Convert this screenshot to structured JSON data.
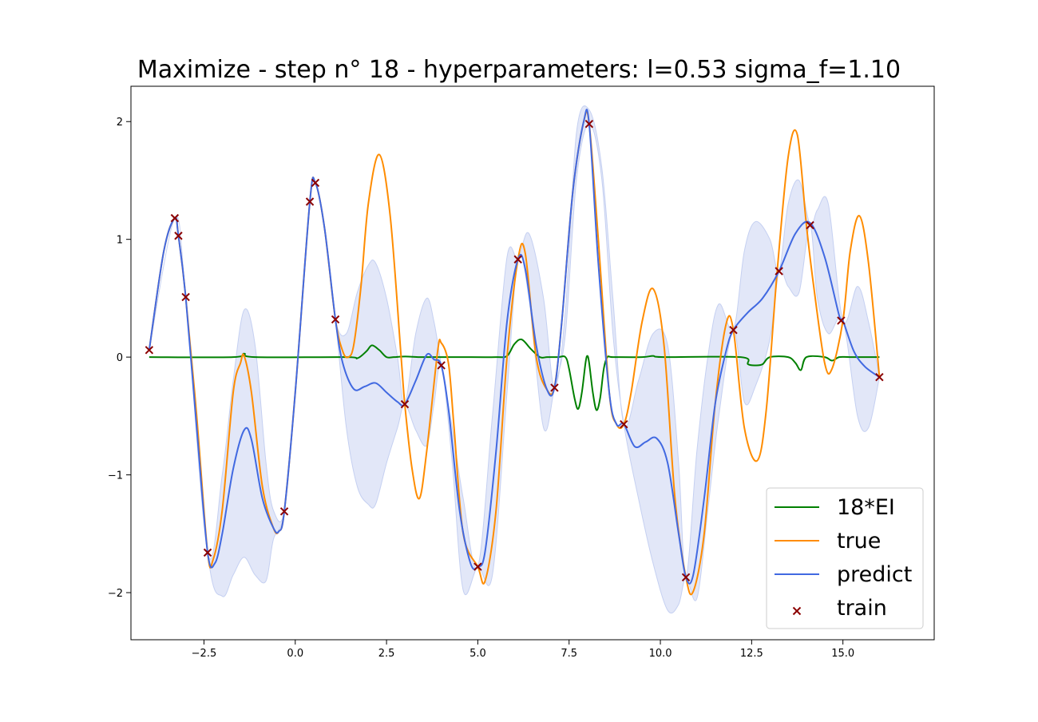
{
  "chart_data": {
    "type": "line",
    "title": "Maximize - step n° 18 - hyperparameters: l=0.53 sigma_f=1.10",
    "xlabel": "",
    "ylabel": "",
    "xlim": [
      -4.5,
      17.5
    ],
    "ylim": [
      -2.4,
      2.3
    ],
    "x_ticks": [
      -2.5,
      0.0,
      2.5,
      5.0,
      7.5,
      10.0,
      12.5,
      15.0
    ],
    "x_tick_labels": [
      "−2.5",
      "0.0",
      "2.5",
      "5.0",
      "7.5",
      "10.0",
      "12.5",
      "15.0"
    ],
    "y_ticks": [
      -2,
      -1,
      0,
      1,
      2
    ],
    "y_tick_labels": [
      "−2",
      "−1",
      "0",
      "1",
      "2"
    ],
    "grid": false,
    "legend": {
      "position": "lower-right",
      "entries": [
        "18*EI",
        "true",
        "predict",
        "train"
      ]
    },
    "colors": {
      "ei": "#008000",
      "true": "#ff8c00",
      "predict": "#4169e1",
      "band": "#c5d0f1",
      "train": "#8b0000"
    },
    "series": [
      {
        "name": "18*EI",
        "x": [
          -4.0,
          -1.7,
          -1.4,
          -1.1,
          1.4,
          1.7,
          1.95,
          2.1,
          2.3,
          2.5,
          2.7,
          3.0,
          3.4,
          3.8,
          4.5,
          5.5,
          5.8,
          6.0,
          6.2,
          6.45,
          6.7,
          6.9,
          7.2,
          7.4,
          7.5,
          7.65,
          7.75,
          7.85,
          7.95,
          8.0,
          8.05,
          8.15,
          8.25,
          8.35,
          8.45,
          8.55,
          8.7,
          9.5,
          9.8,
          10.1,
          12.2,
          12.4,
          12.6,
          12.8,
          13.0,
          13.5,
          13.7,
          13.85,
          14.0,
          14.5,
          14.7,
          14.9,
          15.2,
          16.0
        ],
        "y": [
          0.0,
          0.0,
          0.03,
          0.0,
          0.0,
          -0.01,
          0.05,
          0.1,
          0.06,
          0.0,
          0.0,
          0.005,
          0.0,
          0.0,
          0.0,
          0.0,
          0.01,
          0.11,
          0.15,
          0.07,
          0.0,
          0.0,
          0.0,
          0.0,
          -0.1,
          -0.35,
          -0.44,
          -0.3,
          -0.05,
          0.01,
          -0.05,
          -0.3,
          -0.45,
          -0.35,
          -0.1,
          0.0,
          0.0,
          0.0,
          0.01,
          0.0,
          0.0,
          -0.06,
          -0.07,
          -0.06,
          0.0,
          0.0,
          -0.05,
          -0.11,
          0.0,
          0.0,
          -0.03,
          0.0,
          0.0,
          0.0
        ]
      },
      {
        "name": "true",
        "x": [
          -4.0,
          -3.6,
          -3.3,
          -3.2,
          -3.0,
          -2.7,
          -2.4,
          -2.25,
          -2.0,
          -1.7,
          -1.5,
          -1.4,
          -1.2,
          -0.9,
          -0.6,
          -0.45,
          -0.3,
          0.0,
          0.4,
          0.55,
          0.8,
          1.1,
          1.3,
          1.45,
          1.6,
          1.8,
          2.0,
          2.3,
          2.6,
          2.9,
          3.0,
          3.2,
          3.4,
          3.6,
          3.9,
          4.0,
          4.2,
          4.35,
          4.6,
          5.0,
          5.2,
          5.5,
          5.8,
          6.1,
          6.3,
          6.6,
          6.9,
          7.1,
          7.3,
          7.6,
          7.9,
          8.05,
          8.3,
          8.6,
          8.8,
          9.0,
          9.2,
          9.5,
          9.8,
          10.1,
          10.4,
          10.7,
          10.9,
          11.2,
          11.5,
          11.8,
          12.0,
          12.3,
          12.65,
          12.9,
          13.2,
          13.5,
          13.75,
          14.0,
          14.2,
          14.5,
          14.7,
          15.0,
          15.2,
          15.45,
          15.7,
          16.0
        ],
        "y": [
          0.06,
          0.9,
          1.18,
          1.03,
          0.51,
          -0.5,
          -1.66,
          -1.72,
          -1.3,
          -0.3,
          -0.05,
          0.01,
          -0.3,
          -1.1,
          -1.45,
          -1.48,
          -1.31,
          -0.3,
          1.32,
          1.48,
          1.1,
          0.32,
          0.05,
          0.0,
          0.1,
          0.6,
          1.3,
          1.72,
          1.2,
          0.0,
          -0.4,
          -0.95,
          -1.2,
          -0.8,
          0.05,
          0.12,
          -0.06,
          -0.6,
          -1.5,
          -1.78,
          -1.9,
          -1.3,
          0.0,
          0.83,
          0.88,
          0.0,
          -0.28,
          -0.25,
          0.3,
          1.4,
          2.0,
          1.98,
          1.0,
          -0.3,
          -0.57,
          -0.57,
          -0.3,
          0.3,
          0.58,
          0.1,
          -1.2,
          -1.87,
          -1.99,
          -1.5,
          -0.4,
          0.28,
          0.23,
          -0.6,
          -0.88,
          -0.45,
          0.73,
          1.7,
          1.89,
          1.12,
          0.6,
          -0.05,
          -0.1,
          0.31,
          0.9,
          1.2,
          0.8,
          -0.17
        ]
      },
      {
        "name": "predict",
        "x": [
          -4.0,
          -3.6,
          -3.3,
          -3.2,
          -3.0,
          -2.7,
          -2.4,
          -2.2,
          -2.0,
          -1.7,
          -1.4,
          -1.2,
          -0.9,
          -0.6,
          -0.45,
          -0.3,
          0.0,
          0.4,
          0.55,
          0.8,
          1.1,
          1.3,
          1.6,
          1.9,
          2.2,
          2.5,
          2.8,
          3.0,
          3.3,
          3.6,
          3.8,
          4.0,
          4.2,
          4.5,
          4.8,
          5.0,
          5.2,
          5.5,
          5.8,
          6.1,
          6.3,
          6.6,
          6.9,
          7.1,
          7.3,
          7.6,
          7.9,
          8.05,
          8.3,
          8.6,
          8.8,
          9.0,
          9.3,
          9.6,
          9.9,
          10.2,
          10.5,
          10.7,
          10.9,
          11.2,
          11.5,
          11.8,
          12.0,
          12.4,
          12.8,
          13.25,
          13.7,
          14.1,
          14.5,
          14.9,
          15.0,
          15.3,
          15.6,
          16.0
        ],
        "y": [
          0.06,
          0.9,
          1.18,
          1.03,
          0.51,
          -0.6,
          -1.66,
          -1.75,
          -1.5,
          -0.95,
          -0.62,
          -0.7,
          -1.2,
          -1.45,
          -1.48,
          -1.31,
          -0.3,
          1.32,
          1.48,
          1.1,
          0.32,
          -0.05,
          -0.27,
          -0.25,
          -0.22,
          -0.3,
          -0.38,
          -0.4,
          -0.2,
          0.02,
          -0.02,
          -0.07,
          -0.45,
          -1.3,
          -1.75,
          -1.78,
          -1.65,
          -0.8,
          0.3,
          0.83,
          0.75,
          0.1,
          -0.28,
          -0.26,
          0.3,
          1.4,
          2.0,
          1.98,
          0.8,
          -0.3,
          -0.57,
          -0.57,
          -0.76,
          -0.72,
          -0.69,
          -0.9,
          -1.5,
          -1.87,
          -1.85,
          -1.2,
          -0.4,
          0.05,
          0.23,
          0.38,
          0.5,
          0.73,
          1.05,
          1.14,
          0.85,
          0.35,
          0.31,
          0.05,
          -0.08,
          -0.17
        ]
      }
    ],
    "confidence_band": {
      "name": "predict ± uncertainty",
      "x": [
        -4.0,
        -3.3,
        -3.0,
        -2.4,
        -2.0,
        -1.7,
        -1.4,
        -1.1,
        -0.8,
        -0.6,
        -0.3,
        0.0,
        0.4,
        0.55,
        0.8,
        1.1,
        1.4,
        1.7,
        2.0,
        2.2,
        2.5,
        2.8,
        3.0,
        3.3,
        3.6,
        3.8,
        4.0,
        4.3,
        4.6,
        5.0,
        5.4,
        5.8,
        6.1,
        6.4,
        6.8,
        7.1,
        7.4,
        7.7,
        8.05,
        8.4,
        8.7,
        9.0,
        9.4,
        9.8,
        10.2,
        10.5,
        10.7,
        11.0,
        11.3,
        11.6,
        12.0,
        12.3,
        12.6,
        13.0,
        13.25,
        13.5,
        13.8,
        14.1,
        14.3,
        14.6,
        15.0,
        15.4,
        15.7,
        16.0
      ],
      "upper": [
        0.06,
        1.18,
        0.51,
        -1.66,
        -1.0,
        -0.2,
        0.4,
        0.1,
        -0.9,
        -1.3,
        -1.31,
        -0.3,
        1.32,
        1.48,
        1.1,
        0.32,
        0.2,
        0.55,
        0.78,
        0.8,
        0.5,
        0.0,
        -0.4,
        0.2,
        0.5,
        0.3,
        -0.07,
        -0.6,
        -1.2,
        -1.78,
        -0.5,
        0.85,
        0.83,
        1.05,
        0.5,
        -0.26,
        0.4,
        1.9,
        2.1,
        1.6,
        0.5,
        -0.57,
        -0.2,
        0.2,
        0.1,
        -0.9,
        -1.87,
        -0.8,
        0.0,
        0.45,
        0.23,
        0.9,
        1.15,
        1.0,
        0.73,
        1.3,
        1.5,
        1.12,
        1.25,
        1.3,
        0.31,
        0.6,
        0.3,
        -0.17
      ],
      "lower": [
        0.06,
        1.18,
        0.51,
        -1.66,
        -2.03,
        -1.85,
        -1.7,
        -1.85,
        -1.9,
        -1.55,
        -1.31,
        -0.3,
        1.32,
        1.48,
        1.1,
        0.32,
        -0.6,
        -1.1,
        -1.25,
        -1.25,
        -0.9,
        -0.6,
        -0.4,
        -0.62,
        -0.75,
        -0.4,
        -0.07,
        -0.9,
        -1.98,
        -1.78,
        -1.85,
        -0.3,
        0.83,
        0.5,
        -0.6,
        -0.26,
        0.2,
        1.5,
        1.98,
        1.5,
        0.2,
        -0.57,
        -1.2,
        -1.75,
        -2.15,
        -2.1,
        -1.87,
        -2.05,
        -1.3,
        -0.5,
        0.23,
        -0.38,
        -0.25,
        0.15,
        0.73,
        0.6,
        0.55,
        1.12,
        0.5,
        0.2,
        0.31,
        -0.5,
        -0.6,
        -0.17
      ]
    },
    "train_points": {
      "name": "train",
      "x": [
        -4.0,
        -3.3,
        -3.2,
        -3.0,
        -2.4,
        -0.3,
        0.4,
        0.55,
        1.1,
        3.0,
        4.0,
        5.0,
        6.1,
        7.1,
        8.05,
        9.0,
        10.7,
        12.0,
        13.25,
        14.1,
        14.95,
        16.0
      ],
      "y": [
        0.06,
        1.18,
        1.03,
        0.51,
        -1.66,
        -1.31,
        1.32,
        1.48,
        0.32,
        -0.4,
        -0.07,
        -1.78,
        0.83,
        -0.26,
        1.98,
        -0.57,
        -1.87,
        0.23,
        0.73,
        1.12,
        0.31,
        -0.17
      ]
    }
  }
}
